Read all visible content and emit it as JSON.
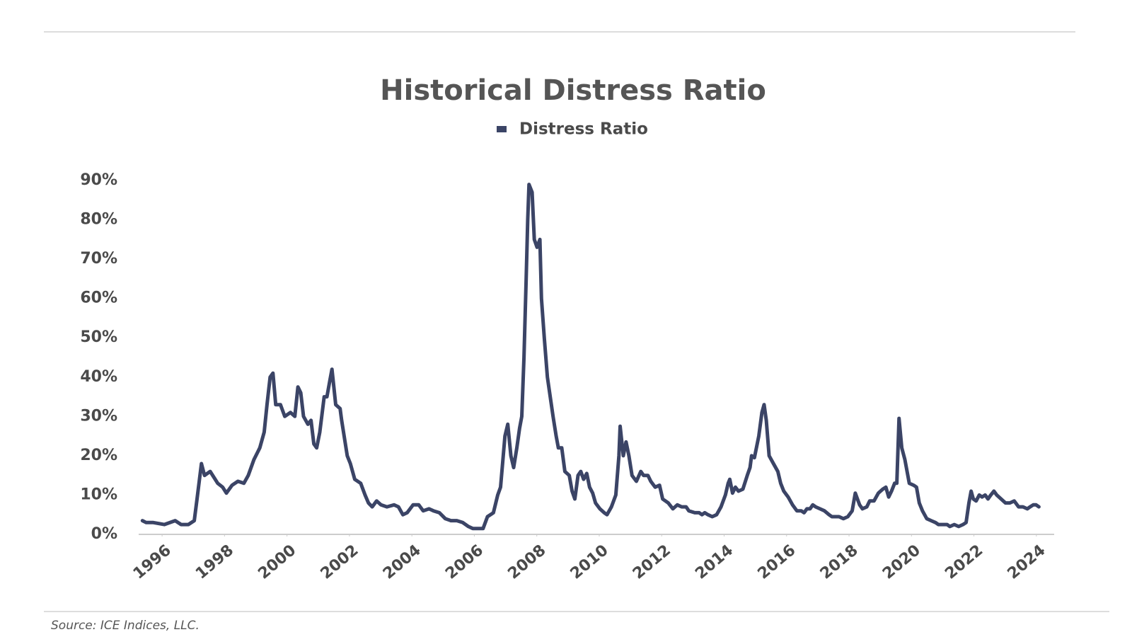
{
  "chart_data": {
    "type": "line",
    "title": "Historical Distress Ratio",
    "source": "Source: ICE Indices, LLC.",
    "x": [
      1995.37,
      1995.49,
      1995.72,
      1996.07,
      1996.42,
      1996.61,
      1996.84,
      1997.03,
      1997.12,
      1997.26,
      1997.36,
      1997.54,
      1997.78,
      1997.94,
      1998.06,
      1998.24,
      1998.43,
      1998.62,
      1998.76,
      1998.94,
      1999.13,
      1999.27,
      1999.36,
      1999.46,
      1999.55,
      1999.64,
      1999.79,
      1999.93,
      2000.11,
      2000.25,
      2000.35,
      2000.44,
      2000.53,
      2000.67,
      2000.77,
      2000.86,
      2000.95,
      2001.05,
      2001.19,
      2001.28,
      2001.37,
      2001.44,
      2001.56,
      2001.7,
      2001.75,
      2001.93,
      2002.03,
      2002.17,
      2002.36,
      2002.5,
      2002.61,
      2002.73,
      2002.87,
      2003.01,
      2003.2,
      2003.43,
      2003.57,
      2003.71,
      2003.85,
      2004.04,
      2004.22,
      2004.36,
      2004.55,
      2004.69,
      2004.88,
      2005.07,
      2005.25,
      2005.44,
      2005.63,
      2005.81,
      2005.95,
      2006.14,
      2006.28,
      2006.42,
      2006.61,
      2006.75,
      2006.84,
      2006.98,
      2007.07,
      2007.17,
      2007.26,
      2007.36,
      2007.45,
      2007.52,
      2007.59,
      2007.66,
      2007.71,
      2007.75,
      2007.85,
      2007.92,
      2008.01,
      2008.1,
      2008.15,
      2008.24,
      2008.34,
      2008.43,
      2008.52,
      2008.62,
      2008.69,
      2008.8,
      2008.9,
      2009.04,
      2009.13,
      2009.22,
      2009.32,
      2009.41,
      2009.5,
      2009.6,
      2009.69,
      2009.79,
      2009.88,
      2010.02,
      2010.16,
      2010.25,
      2010.39,
      2010.53,
      2010.63,
      2010.67,
      2010.77,
      2010.86,
      2010.95,
      2011.05,
      2011.19,
      2011.33,
      2011.42,
      2011.56,
      2011.65,
      2011.79,
      2011.93,
      2012.03,
      2012.21,
      2012.36,
      2012.5,
      2012.64,
      2012.78,
      2012.87,
      2013.06,
      2013.2,
      2013.29,
      2013.38,
      2013.48,
      2013.62,
      2013.76,
      2013.9,
      2014.04,
      2014.13,
      2014.18,
      2014.27,
      2014.36,
      2014.46,
      2014.6,
      2014.74,
      2014.83,
      2014.88,
      2014.97,
      2015.11,
      2015.21,
      2015.28,
      2015.35,
      2015.44,
      2015.58,
      2015.72,
      2015.81,
      2015.91,
      2016.05,
      2016.19,
      2016.33,
      2016.47,
      2016.56,
      2016.65,
      2016.75,
      2016.84,
      2016.93,
      2017.07,
      2017.21,
      2017.36,
      2017.45,
      2017.59,
      2017.68,
      2017.82,
      2017.96,
      2018.1,
      2018.2,
      2018.34,
      2018.43,
      2018.57,
      2018.66,
      2018.8,
      2018.94,
      2019.08,
      2019.18,
      2019.27,
      2019.36,
      2019.46,
      2019.53,
      2019.6,
      2019.69,
      2019.79,
      2019.93,
      2020.07,
      2020.16,
      2020.25,
      2020.35,
      2020.49,
      2020.63,
      2020.77,
      2020.86,
      2021.0,
      2021.14,
      2021.23,
      2021.37,
      2021.51,
      2021.65,
      2021.75,
      2021.84,
      2021.91,
      2021.98,
      2022.07,
      2022.17,
      2022.26,
      2022.36,
      2022.45,
      2022.54,
      2022.64,
      2022.73,
      2022.87,
      2023.01,
      2023.15,
      2023.29,
      2023.43,
      2023.57,
      2023.71,
      2023.8,
      2023.9,
      2023.99,
      2024.08
    ],
    "series": [
      {
        "name": "Distress Ratio",
        "color": "#3b4466",
        "values": [
          3.5,
          3,
          3,
          2.5,
          3.5,
          2.5,
          2.5,
          3.5,
          9,
          18,
          15,
          16,
          13,
          12,
          10.5,
          12.5,
          13.5,
          13,
          15,
          19,
          22,
          26,
          33,
          40,
          41,
          33,
          33,
          30,
          31,
          30,
          37.5,
          36,
          30,
          28,
          29,
          23,
          22,
          26,
          35,
          35,
          39,
          42,
          33,
          32,
          29,
          20,
          18,
          14,
          13,
          10,
          8,
          7,
          8.5,
          7.5,
          7,
          7.5,
          7,
          5,
          5.5,
          7.5,
          7.5,
          6,
          6.5,
          6,
          5.5,
          4,
          3.5,
          3.5,
          3,
          2,
          1.5,
          1.5,
          1.5,
          4.5,
          5.5,
          10,
          12,
          25,
          28,
          20,
          17,
          22,
          27,
          30,
          45,
          65,
          80,
          89,
          87,
          75,
          73,
          75,
          60,
          50,
          40,
          35,
          30,
          25,
          22,
          22,
          16,
          15,
          11,
          9,
          15,
          16,
          14,
          15.5,
          12,
          10.5,
          8,
          6.5,
          5.5,
          5,
          7,
          10,
          20,
          27.5,
          20,
          23.5,
          20,
          15,
          13.5,
          16,
          15,
          15,
          13.5,
          12,
          12.5,
          9,
          8,
          6.5,
          7.5,
          7,
          7,
          6,
          5.5,
          5.5,
          5,
          5.5,
          5,
          4.5,
          5,
          7,
          10,
          13,
          14,
          10.5,
          12,
          11,
          11.5,
          15,
          17,
          20,
          19.5,
          25,
          31,
          33,
          29,
          20,
          18,
          16,
          13,
          11,
          9.5,
          7.5,
          6,
          6,
          5.5,
          6.5,
          6.5,
          7.5,
          7,
          6.5,
          6,
          5,
          4.5,
          4.5,
          4.5,
          4,
          4.5,
          6,
          10.5,
          7.5,
          6.5,
          7,
          8.5,
          8.5,
          10.5,
          11.5,
          12,
          9.5,
          11,
          13,
          13,
          29.5,
          22,
          19,
          13,
          12.5,
          12,
          8,
          6,
          4,
          3.5,
          3,
          2.5,
          2.5,
          2.5,
          2,
          2.5,
          2,
          2.5,
          3,
          8,
          11,
          9,
          8.5,
          10,
          9.5,
          10,
          9,
          10,
          11,
          10,
          9,
          8,
          8,
          8.5,
          7,
          7,
          6.5,
          7,
          7.5,
          7.5,
          7
        ]
      }
    ],
    "xlim": [
      1995.25,
      2024.57
    ],
    "xticks": [
      1996,
      1998,
      2000,
      2002,
      2004,
      2006,
      2008,
      2010,
      2012,
      2014,
      2016,
      2018,
      2020,
      2022,
      2024
    ],
    "ylim": [
      0,
      90
    ],
    "yticks": [
      {
        "value": 0,
        "label": "0%"
      },
      {
        "value": 10,
        "label": "10%"
      },
      {
        "value": 20,
        "label": "20%"
      },
      {
        "value": 30,
        "label": "30%"
      },
      {
        "value": 40,
        "label": "40%"
      },
      {
        "value": 50,
        "label": "50%"
      },
      {
        "value": 60,
        "label": "60%"
      },
      {
        "value": 70,
        "label": "70%"
      },
      {
        "value": 80,
        "label": "80%"
      },
      {
        "value": 90,
        "label": "90%"
      }
    ],
    "grid": false,
    "legend": "top"
  }
}
